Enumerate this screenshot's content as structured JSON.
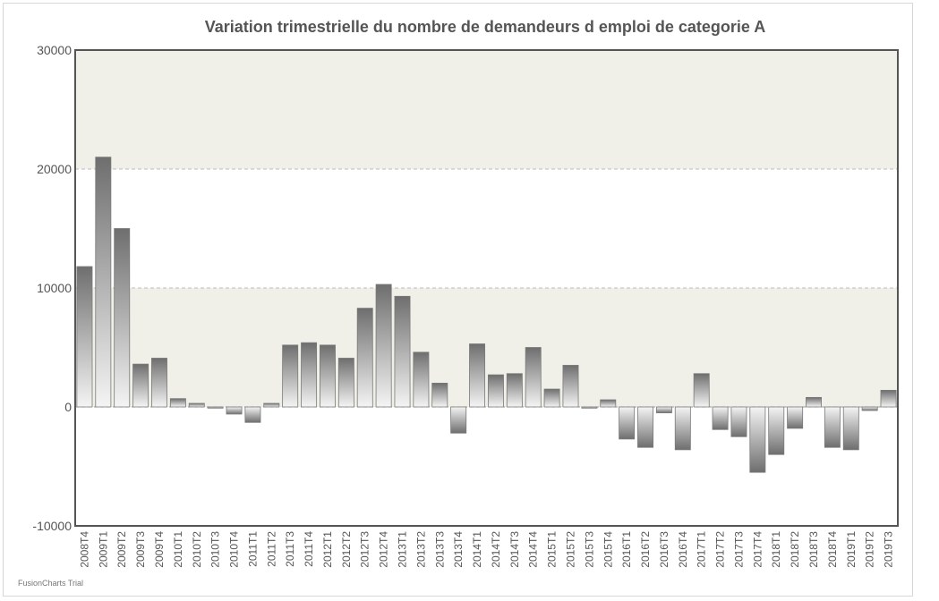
{
  "chart_data": {
    "type": "bar",
    "title": "Variation trimestrielle du nombre de demandeurs d emploi de categorie A",
    "xlabel": "",
    "ylabel": "",
    "ylim": [
      -10000,
      30000
    ],
    "yticks": [
      "30000",
      "20000",
      "10000",
      "0",
      "-10000"
    ],
    "grid": true,
    "categories": [
      "2008T4",
      "2009T1",
      "2009T2",
      "2009T3",
      "2009T4",
      "2010T1",
      "2010T2",
      "2010T3",
      "2010T4",
      "2011T1",
      "2011T2",
      "2011T3",
      "2011T4",
      "2012T1",
      "2012T2",
      "2012T3",
      "2012T4",
      "2013T1",
      "2013T2",
      "2013T3",
      "2013T4",
      "2014T1",
      "2014T2",
      "2014T3",
      "2014T4",
      "2015T1",
      "2015T2",
      "2015T3",
      "2015T4",
      "2016T1",
      "2016T2",
      "2016T3",
      "2016T4",
      "2017T1",
      "2017T2",
      "2017T3",
      "2017T4",
      "2018T1",
      "2018T2",
      "2018T3",
      "2018T4",
      "2019T1",
      "2019T2",
      "2019T3"
    ],
    "values": [
      11800,
      21000,
      15000,
      3600,
      4100,
      700,
      300,
      -100,
      -600,
      -1300,
      300,
      5200,
      5400,
      5200,
      4100,
      8300,
      10300,
      9300,
      4600,
      2000,
      -2200,
      5300,
      2700,
      2800,
      5000,
      1500,
      3500,
      -100,
      600,
      -2700,
      -3400,
      -500,
      -3600,
      2800,
      -1900,
      -2500,
      -5500,
      -4000,
      -1800,
      800,
      -3400,
      -3600,
      -300,
      1400
    ],
    "colors": {
      "bar_dark": "#707070",
      "bar_light": "#f4f4f4",
      "band": "#f0f0e8",
      "axis": "#555555",
      "grid": "#bbbbbb"
    }
  },
  "credit": "FusionCharts Trial"
}
